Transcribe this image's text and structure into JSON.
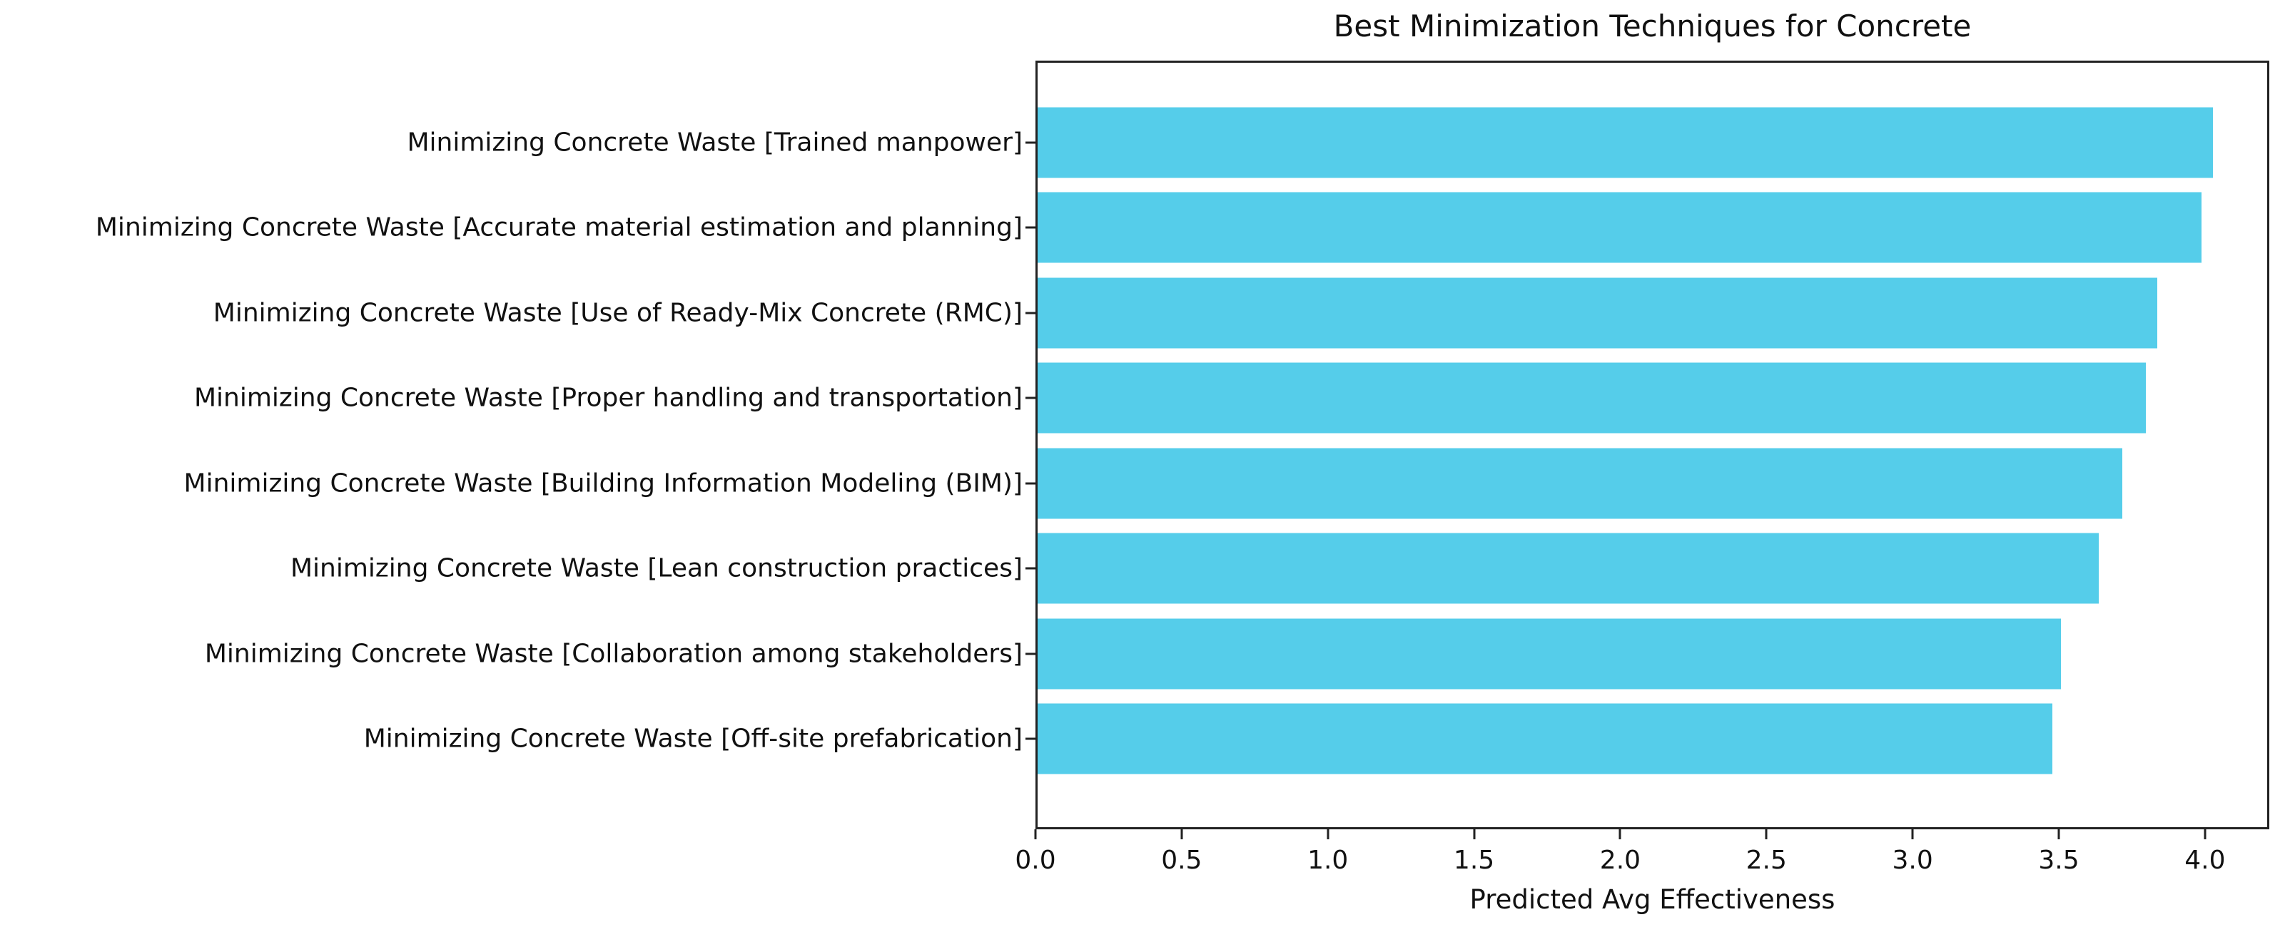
{
  "chart_data": {
    "type": "bar",
    "orientation": "horizontal",
    "title": "Best Minimization Techniques for Concrete",
    "xlabel": "Predicted Avg Effectiveness",
    "ylabel": "",
    "categories": [
      "Minimizing Concrete Waste [Trained manpower]",
      "Minimizing Concrete Waste [Accurate material estimation and planning]",
      "Minimizing Concrete Waste [Use of Ready-Mix Concrete (RMC)]",
      "Minimizing Concrete Waste [Proper handling and transportation]",
      "Minimizing Concrete Waste [Building Information Modeling (BIM)]",
      "Minimizing Concrete Waste [Lean construction practices]",
      "Minimizing Concrete Waste [Collaboration among stakeholders]",
      "Minimizing Concrete Waste [Off-site prefabrication]"
    ],
    "values": [
      4.02,
      3.98,
      3.83,
      3.79,
      3.71,
      3.63,
      3.5,
      3.47
    ],
    "xlim": [
      0,
      4.22
    ],
    "xtick_values": [
      0.0,
      0.5,
      1.0,
      1.5,
      2.0,
      2.5,
      3.0,
      3.5,
      4.0
    ],
    "xtick_labels": [
      "0.0",
      "0.5",
      "1.0",
      "1.5",
      "2.0",
      "2.5",
      "3.0",
      "3.5",
      "4.0"
    ],
    "bar_color": "#55CDEA",
    "grid": false,
    "legend": null
  }
}
